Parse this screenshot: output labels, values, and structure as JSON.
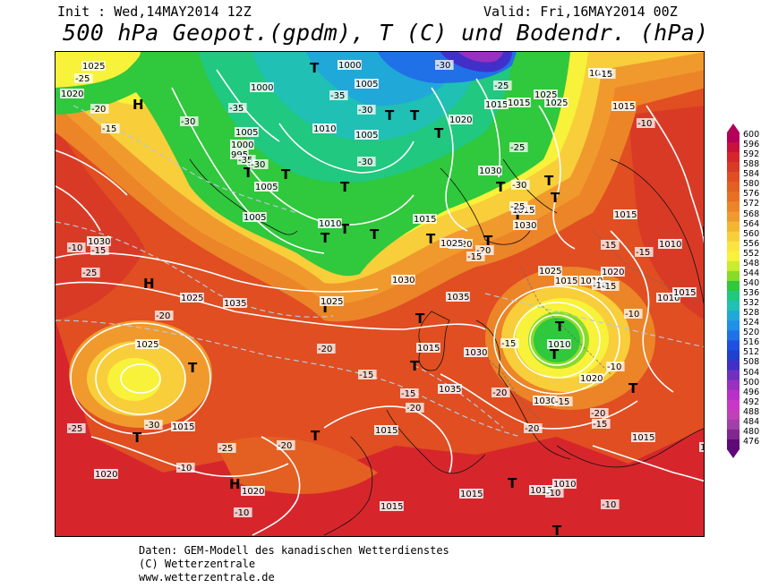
{
  "header": {
    "init": "Init : Wed,14MAY2014 12Z",
    "valid": "Valid: Fri,16MAY2014 00Z",
    "title": "500 hPa Geopot.(gpdm), T (C) und Bodendr. (hPa)"
  },
  "footer": {
    "line1": "Daten: GEM-Modell des kanadischen Wetterdienstes",
    "line2": "(C) Wetterzentrale",
    "line3": "www.wetterzentrale.de"
  },
  "legend": {
    "labels": [
      "600",
      "596",
      "592",
      "588",
      "584",
      "580",
      "576",
      "572",
      "568",
      "564",
      "560",
      "556",
      "552",
      "548",
      "544",
      "540",
      "536",
      "532",
      "528",
      "524",
      "520",
      "516",
      "512",
      "508",
      "504",
      "500",
      "496",
      "492",
      "488",
      "484",
      "480",
      "476"
    ],
    "colors": [
      "#b5005a",
      "#c8123c",
      "#d6262c",
      "#d93a26",
      "#e04e22",
      "#e46022",
      "#e87024",
      "#ec8428",
      "#f09a2e",
      "#f4b434",
      "#f8ce3a",
      "#fce440",
      "#f8f23a",
      "#c8ec30",
      "#88dc28",
      "#30c83c",
      "#20c880",
      "#20c0b4",
      "#20a8d8",
      "#2090e8",
      "#2070e8",
      "#2050e0",
      "#2040d0",
      "#4030c8",
      "#7030c0",
      "#9830c0",
      "#b830c8",
      "#c838c8",
      "#c040b8",
      "#a040a8",
      "#802890",
      "#600878"
    ]
  },
  "map": {
    "highs": [
      {
        "label": "H"
      },
      {
        "label": "H"
      },
      {
        "label": "H"
      },
      {
        "label": "H"
      }
    ],
    "lows": [
      {
        "label": "T"
      },
      {
        "label": "T"
      },
      {
        "label": "T"
      },
      {
        "label": "T"
      },
      {
        "label": "T"
      },
      {
        "label": "T"
      },
      {
        "label": "T"
      },
      {
        "label": "T"
      },
      {
        "label": "T"
      },
      {
        "label": "T"
      },
      {
        "label": "T"
      },
      {
        "label": "T"
      },
      {
        "label": "T"
      },
      {
        "label": "T"
      },
      {
        "label": "T"
      },
      {
        "label": "T"
      },
      {
        "label": "T"
      },
      {
        "label": "T"
      },
      {
        "label": "T"
      },
      {
        "label": "T"
      },
      {
        "label": "T"
      },
      {
        "label": "T"
      },
      {
        "label": "T"
      },
      {
        "label": "T"
      },
      {
        "label": "T"
      },
      {
        "label": "T"
      },
      {
        "label": "T"
      }
    ],
    "pressure_labels": [
      "1025",
      "1020",
      "1000",
      "1000",
      "1005",
      "1005",
      "1010",
      "1005",
      "1020",
      "1015",
      "1025",
      "1015",
      "1005",
      "1000",
      "995",
      "1005",
      "1010",
      "1015",
      "1030",
      "1025",
      "1015",
      "1010",
      "1015",
      "1020",
      "1025",
      "1030",
      "1030",
      "1035",
      "1025",
      "1030",
      "1035",
      "1015",
      "1010",
      "1015",
      "1030",
      "1025",
      "1020",
      "1035",
      "1030",
      "1020",
      "1015",
      "1010",
      "1015",
      "1015",
      "1005",
      "1010",
      "1015",
      "1010",
      "1010",
      "1015",
      "1015",
      "1015",
      "1020",
      "1025",
      "1025",
      "1020",
      "1015"
    ],
    "temp_labels": [
      "-25",
      "-20",
      "-15",
      "-30",
      "-35",
      "-35",
      "-30",
      "-35",
      "-30",
      "-30",
      "-30",
      "-25",
      "-25",
      "-30",
      "-25",
      "-20",
      "-10",
      "-15",
      "-10",
      "-15",
      "-20",
      "-25",
      "-30",
      "-20",
      "-15",
      "-20",
      "-20",
      "-15",
      "-10",
      "-10",
      "-20",
      "-15",
      "-10",
      "-10",
      "-20",
      "-15",
      "-15",
      "-25",
      "-20",
      "-25",
      "-15",
      "-15",
      "-10",
      "-10",
      "-10",
      "-15",
      "-15"
    ]
  }
}
